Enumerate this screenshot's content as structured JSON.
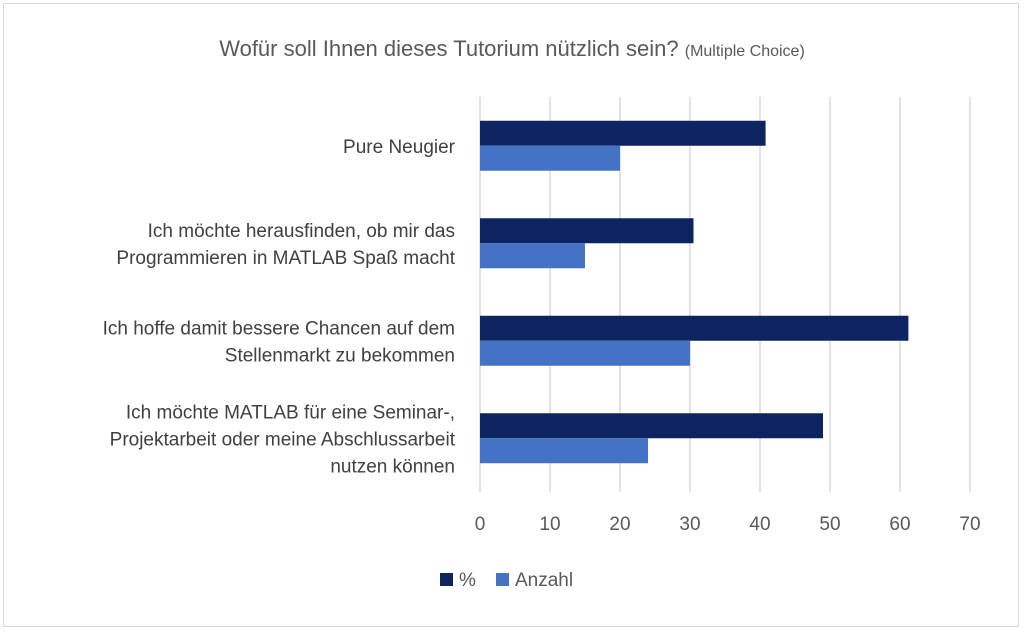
{
  "chart_data": {
    "type": "bar",
    "orientation": "horizontal",
    "title": "Wofür soll Ihnen dieses Tutorium nützlich sein?",
    "subtitle": "(Multiple Choice)",
    "categories": [
      [
        "Pure Neugier"
      ],
      [
        "Ich möchte herausfinden, ob mir das",
        "Programmieren in MATLAB Spaß macht"
      ],
      [
        "Ich hoffe damit bessere Chancen auf dem",
        "Stellenmarkt zu bekommen"
      ],
      [
        "Ich möchte MATLAB für eine Seminar-,",
        "Projektarbeit oder meine Abschlussarbeit",
        "nutzen können"
      ]
    ],
    "series": [
      {
        "name": "%",
        "color": "#0e2461",
        "values": [
          40.8,
          30.5,
          61.2,
          49
        ]
      },
      {
        "name": "Anzahl",
        "color": "#4472c4",
        "values": [
          20,
          15,
          30,
          24
        ]
      }
    ],
    "xlim": [
      0,
      70
    ],
    "xticks": [
      0,
      10,
      20,
      30,
      40,
      50,
      60,
      70
    ],
    "grid": true,
    "legend_position": "bottom"
  }
}
